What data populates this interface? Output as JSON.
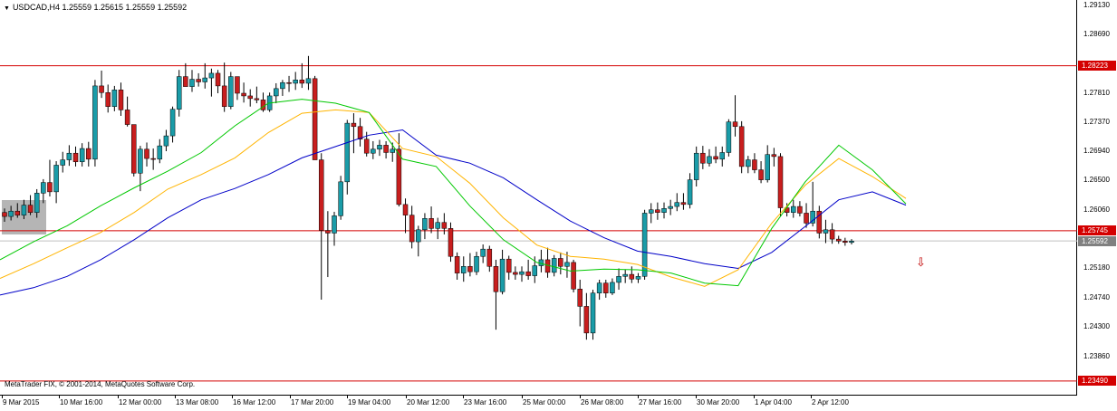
{
  "header": {
    "symbol_label": "USDCAD,H4",
    "ohlc": "1.25559 1.25615 1.25559 1.25592",
    "menu_icon": "triangle-down-icon"
  },
  "footer": {
    "copyright": "MetaTrader FIX, © 2001-2014, MetaQuotes Software Corp."
  },
  "price_axis": {
    "labels": [
      "1.29130",
      "1.28690",
      "1.27810",
      "1.27370",
      "1.26940",
      "1.26500",
      "1.26060",
      "1.25180",
      "1.24740",
      "1.24300",
      "1.23860"
    ],
    "highlighted": [
      {
        "value": "1.28223",
        "color": "#d40000"
      },
      {
        "value": "1.25745",
        "color": "#d40000"
      },
      {
        "value": "1.25592",
        "color": "#808080"
      },
      {
        "value": "1.23490",
        "color": "#d40000"
      }
    ]
  },
  "time_axis": {
    "labels": [
      "9 Mar 2015",
      "10 Mar 16:00",
      "12 Mar 00:00",
      "13 Mar 08:00",
      "16 Mar 12:00",
      "17 Mar 20:00",
      "19 Mar 04:00",
      "20 Mar 12:00",
      "23 Mar 16:00",
      "25 Mar 00:00",
      "26 Mar 08:00",
      "27 Mar 16:00",
      "30 Mar 20:00",
      "1 Apr 04:00",
      "2 Apr 12:00"
    ]
  },
  "colors": {
    "bull": "#1a9ca8",
    "bear": "#c81e1e",
    "ma_fast": "#00c800",
    "ma_mid": "#ffb400",
    "ma_slow": "#0000c8",
    "level_line": "#d40000",
    "bid_line": "#c0c0c0"
  },
  "markers": {
    "sell_signal": "arrow-down-icon"
  },
  "chart_data": {
    "type": "candlestick",
    "ylim": [
      1.2327,
      1.2921
    ],
    "levels": [
      1.28223,
      1.25745,
      1.2349
    ],
    "bid": 1.25592,
    "candles": [
      [
        1.2602,
        1.2608,
        1.2588,
        1.2596
      ],
      [
        1.2596,
        1.2612,
        1.259,
        1.2604
      ],
      [
        1.2604,
        1.2616,
        1.2594,
        1.2598
      ],
      [
        1.2598,
        1.2621,
        1.2592,
        1.2613
      ],
      [
        1.2613,
        1.2628,
        1.2598,
        1.2602
      ],
      [
        1.2602,
        1.2637,
        1.2594,
        1.2631
      ],
      [
        1.2631,
        1.2652,
        1.2616,
        1.2647
      ],
      [
        1.2647,
        1.2681,
        1.2626,
        1.2633
      ],
      [
        1.2633,
        1.2679,
        1.2616,
        1.2673
      ],
      [
        1.2673,
        1.2693,
        1.2662,
        1.2681
      ],
      [
        1.2681,
        1.2703,
        1.2672,
        1.2691
      ],
      [
        1.2691,
        1.2701,
        1.2671,
        1.2678
      ],
      [
        1.2678,
        1.2706,
        1.2671,
        1.2698
      ],
      [
        1.2698,
        1.2708,
        1.2671,
        1.2682
      ],
      [
        1.2682,
        1.2801,
        1.2671,
        1.2792
      ],
      [
        1.2792,
        1.2815,
        1.2774,
        1.2782
      ],
      [
        1.2782,
        1.2794,
        1.2752,
        1.2761
      ],
      [
        1.2761,
        1.2792,
        1.2754,
        1.2786
      ],
      [
        1.2786,
        1.2797,
        1.2747,
        1.2756
      ],
      [
        1.2756,
        1.2776,
        1.2731,
        1.2734
      ],
      [
        1.2734,
        1.2729,
        1.2656,
        1.2661
      ],
      [
        1.2661,
        1.2702,
        1.2634,
        1.2697
      ],
      [
        1.2697,
        1.2707,
        1.2671,
        1.2683
      ],
      [
        1.2683,
        1.2698,
        1.2666,
        1.2682
      ],
      [
        1.2682,
        1.2712,
        1.2676,
        1.2702
      ],
      [
        1.2702,
        1.2726,
        1.2694,
        1.2717
      ],
      [
        1.2717,
        1.2761,
        1.2707,
        1.2757
      ],
      [
        1.2757,
        1.2816,
        1.2746,
        1.2806
      ],
      [
        1.2806,
        1.2826,
        1.2796,
        1.2791
      ],
      [
        1.2791,
        1.2816,
        1.2783,
        1.2802
      ],
      [
        1.2802,
        1.2811,
        1.2791,
        1.2798
      ],
      [
        1.2798,
        1.2826,
        1.2788,
        1.2804
      ],
      [
        1.2804,
        1.2818,
        1.2776,
        1.2811
      ],
      [
        1.2811,
        1.2816,
        1.2781,
        1.2792
      ],
      [
        1.2792,
        1.2827,
        1.2753,
        1.2761
      ],
      [
        1.2761,
        1.2813,
        1.2757,
        1.2806
      ],
      [
        1.2806,
        1.2803,
        1.2771,
        1.2781
      ],
      [
        1.2781,
        1.2797,
        1.2767,
        1.2777
      ],
      [
        1.2777,
        1.2787,
        1.2761,
        1.2773
      ],
      [
        1.2773,
        1.2791,
        1.2766,
        1.2771
      ],
      [
        1.2771,
        1.2782,
        1.2753,
        1.2756
      ],
      [
        1.2756,
        1.2782,
        1.2753,
        1.2777
      ],
      [
        1.2777,
        1.2796,
        1.2766,
        1.2788
      ],
      [
        1.2788,
        1.2801,
        1.2777,
        1.2797
      ],
      [
        1.2797,
        1.2807,
        1.2783,
        1.2796
      ],
      [
        1.2796,
        1.2813,
        1.2786,
        1.2801
      ],
      [
        1.2801,
        1.2826,
        1.2789,
        1.2796
      ],
      [
        1.2796,
        1.2837,
        1.2786,
        1.2803
      ],
      [
        1.2803,
        1.2807,
        1.2681,
        1.2681
      ],
      [
        1.2681,
        1.2691,
        1.2471,
        1.2575
      ],
      [
        1.2575,
        1.2604,
        1.2505,
        1.2571
      ],
      [
        1.2571,
        1.2603,
        1.2552,
        1.2597
      ],
      [
        1.2597,
        1.2657,
        1.2591,
        1.2648
      ],
      [
        1.2648,
        1.2741,
        1.2629,
        1.2736
      ],
      [
        1.2736,
        1.2751,
        1.2691,
        1.2731
      ],
      [
        1.2731,
        1.2744,
        1.2701,
        1.2712
      ],
      [
        1.2712,
        1.2723,
        1.2686,
        1.2691
      ],
      [
        1.2691,
        1.2709,
        1.2682,
        1.2697
      ],
      [
        1.2697,
        1.2711,
        1.2687,
        1.2703
      ],
      [
        1.2703,
        1.2709,
        1.2683,
        1.2692
      ],
      [
        1.2692,
        1.2707,
        1.2678,
        1.2697
      ],
      [
        1.2697,
        1.2721,
        1.2611,
        1.2614
      ],
      [
        1.2614,
        1.2623,
        1.2571,
        1.2598
      ],
      [
        1.2598,
        1.2612,
        1.2548,
        1.2558
      ],
      [
        1.2558,
        1.2582,
        1.2536,
        1.2576
      ],
      [
        1.2576,
        1.2601,
        1.2562,
        1.2593
      ],
      [
        1.2593,
        1.2611,
        1.2571,
        1.2578
      ],
      [
        1.2578,
        1.2594,
        1.2562,
        1.2587
      ],
      [
        1.2587,
        1.2601,
        1.2569,
        1.2578
      ],
      [
        1.2578,
        1.2587,
        1.2528,
        1.2536
      ],
      [
        1.2536,
        1.2542,
        1.2501,
        1.2511
      ],
      [
        1.2511,
        1.2536,
        1.2498,
        1.2521
      ],
      [
        1.2521,
        1.2541,
        1.2506,
        1.2513
      ],
      [
        1.2513,
        1.2543,
        1.2508,
        1.2536
      ],
      [
        1.2536,
        1.2554,
        1.2526,
        1.2547
      ],
      [
        1.2547,
        1.2552,
        1.2513,
        1.2521
      ],
      [
        1.2521,
        1.2531,
        1.2426,
        1.2483
      ],
      [
        1.2483,
        1.2546,
        1.2479,
        1.2532
      ],
      [
        1.2532,
        1.2537,
        1.2501,
        1.2512
      ],
      [
        1.2512,
        1.2521,
        1.2501,
        1.2509
      ],
      [
        1.2509,
        1.2521,
        1.2498,
        1.2513
      ],
      [
        1.2513,
        1.2531,
        1.2501,
        1.2507
      ],
      [
        1.2507,
        1.2536,
        1.2496,
        1.2522
      ],
      [
        1.2522,
        1.2546,
        1.2512,
        1.2531
      ],
      [
        1.2531,
        1.2549,
        1.2504,
        1.2512
      ],
      [
        1.2512,
        1.2538,
        1.2506,
        1.2533
      ],
      [
        1.2533,
        1.2542,
        1.2509,
        1.2521
      ],
      [
        1.2521,
        1.2543,
        1.2504,
        1.2527
      ],
      [
        1.2527,
        1.2531,
        1.2482,
        1.2487
      ],
      [
        1.2487,
        1.2501,
        1.2431,
        1.2461
      ],
      [
        1.2461,
        1.2481,
        1.2411,
        1.2421
      ],
      [
        1.2421,
        1.2486,
        1.2411,
        1.2481
      ],
      [
        1.2481,
        1.2501,
        1.2471,
        1.2496
      ],
      [
        1.2496,
        1.2501,
        1.2474,
        1.2481
      ],
      [
        1.2481,
        1.2503,
        1.2478,
        1.2497
      ],
      [
        1.2497,
        1.2518,
        1.2486,
        1.2506
      ],
      [
        1.2506,
        1.2516,
        1.2496,
        1.2509
      ],
      [
        1.2509,
        1.2521,
        1.2496,
        1.2502
      ],
      [
        1.2502,
        1.2511,
        1.2496,
        1.2506
      ],
      [
        1.2506,
        1.2606,
        1.2501,
        1.2601
      ],
      [
        1.2601,
        1.2616,
        1.2586,
        1.2606
      ],
      [
        1.2606,
        1.2617,
        1.2591,
        1.2602
      ],
      [
        1.2602,
        1.2617,
        1.2593,
        1.2608
      ],
      [
        1.2608,
        1.2621,
        1.2598,
        1.2611
      ],
      [
        1.2611,
        1.2631,
        1.2604,
        1.2617
      ],
      [
        1.2617,
        1.2631,
        1.2606,
        1.2614
      ],
      [
        1.2614,
        1.2661,
        1.2608,
        1.2651
      ],
      [
        1.2651,
        1.2701,
        1.2641,
        1.2691
      ],
      [
        1.2691,
        1.2702,
        1.2667,
        1.2676
      ],
      [
        1.2676,
        1.2697,
        1.2671,
        1.2686
      ],
      [
        1.2686,
        1.2701,
        1.2676,
        1.2682
      ],
      [
        1.2682,
        1.2701,
        1.2671,
        1.2692
      ],
      [
        1.2692,
        1.2742,
        1.2686,
        1.2738
      ],
      [
        1.2738,
        1.2778,
        1.2716,
        1.2731
      ],
      [
        1.2731,
        1.2739,
        1.2661,
        1.2671
      ],
      [
        1.2671,
        1.2687,
        1.2661,
        1.2681
      ],
      [
        1.2681,
        1.2691,
        1.2661,
        1.2666
      ],
      [
        1.2666,
        1.2679,
        1.2646,
        1.2651
      ],
      [
        1.2651,
        1.2703,
        1.2647,
        1.2689
      ],
      [
        1.2689,
        1.2699,
        1.2671,
        1.2686
      ],
      [
        1.2686,
        1.2691,
        1.2596,
        1.2609
      ],
      [
        1.2609,
        1.2616,
        1.2596,
        1.2602
      ],
      [
        1.2602,
        1.2621,
        1.2594,
        1.2611
      ],
      [
        1.2611,
        1.2619,
        1.2596,
        1.2601
      ],
      [
        1.2601,
        1.2616,
        1.2579,
        1.2586
      ],
      [
        1.2586,
        1.2648,
        1.2581,
        1.2604
      ],
      [
        1.2604,
        1.2612,
        1.2563,
        1.2571
      ],
      [
        1.2571,
        1.2591,
        1.2556,
        1.2576
      ],
      [
        1.2576,
        1.2586,
        1.2555,
        1.2562
      ],
      [
        1.2562,
        1.2567,
        1.2555,
        1.2559
      ],
      [
        1.2559,
        1.2564,
        1.2552,
        1.2557
      ],
      [
        1.2557,
        1.2562,
        1.2554,
        1.2559
      ]
    ],
    "ma_fast": [
      1.2531,
      1.2558,
      1.2582,
      1.2612,
      1.2639,
      1.2664,
      1.2692,
      1.2732,
      1.2766,
      1.2772,
      1.2766,
      1.2752,
      1.2682,
      1.2671,
      1.2612,
      1.2561,
      1.2527,
      1.2514,
      1.2517,
      1.2516,
      1.2511,
      1.2496,
      1.2492,
      1.2578,
      1.2648,
      1.2703,
      1.2666,
      1.2615
    ],
    "ma_mid": [
      1.2503,
      1.2525,
      1.2549,
      1.2572,
      1.2602,
      1.2637,
      1.2659,
      1.2684,
      1.2722,
      1.2751,
      1.2756,
      1.2752,
      1.2698,
      1.2686,
      1.2646,
      1.2594,
      1.2553,
      1.2536,
      1.2532,
      1.2524,
      1.2505,
      1.2491,
      1.2516,
      1.2586,
      1.2643,
      1.2683,
      1.2656,
      1.2623
    ],
    "ma_slow": [
      1.2478,
      1.2489,
      1.2506,
      1.2531,
      1.2561,
      1.2594,
      1.2621,
      1.2638,
      1.2659,
      1.2684,
      1.2701,
      1.2718,
      1.2726,
      1.2688,
      1.2676,
      1.2654,
      1.2621,
      1.2589,
      1.2564,
      1.2544,
      1.2536,
      1.2525,
      1.2518,
      1.2542,
      1.2581,
      1.2621,
      1.2633,
      1.2613
    ]
  }
}
